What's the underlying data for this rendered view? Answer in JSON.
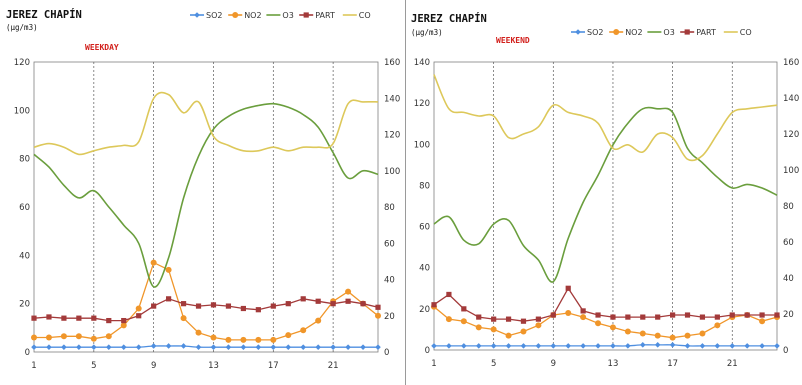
{
  "chart_data": [
    {
      "type": "line",
      "title": "JEREZ CHAPÍN",
      "subtitle": "(µg/m3)",
      "day_type": "WEEKDAY",
      "legend_position": "top-right",
      "grid": "vertical-dashed",
      "x": [
        1,
        2,
        3,
        4,
        5,
        6,
        7,
        8,
        9,
        10,
        11,
        12,
        13,
        14,
        15,
        16,
        17,
        18,
        19,
        20,
        21,
        22,
        23,
        24
      ],
      "x_ticks": [
        1,
        5,
        9,
        13,
        17,
        21
      ],
      "y_left": {
        "ticks": [
          0,
          20,
          40,
          60,
          80,
          100,
          120
        ],
        "lim": [
          0,
          120
        ]
      },
      "y_right": {
        "ticks": [
          0,
          20,
          40,
          60,
          80,
          100,
          120,
          140,
          160
        ],
        "lim": [
          0,
          160
        ]
      },
      "series": [
        {
          "name": "SO2",
          "axis": "left",
          "color": "#4f8fe0",
          "marker": "diamond",
          "smooth": true,
          "values": [
            2,
            2,
            2,
            2,
            2,
            2,
            2,
            2,
            2.5,
            2.5,
            2.5,
            2,
            2,
            2,
            2,
            2,
            2,
            2,
            2,
            2,
            2,
            2,
            2,
            2
          ]
        },
        {
          "name": "NO2",
          "axis": "left",
          "color": "#f0962a",
          "marker": "circle",
          "smooth": false,
          "values": [
            6,
            6,
            6.5,
            6.5,
            5.5,
            6.5,
            11,
            18,
            37,
            34,
            14,
            8,
            6,
            5,
            5,
            5,
            5,
            7,
            9,
            13,
            21,
            25,
            20,
            15
          ]
        },
        {
          "name": "O3",
          "axis": "right",
          "color": "#6a9e3d",
          "marker": "none",
          "smooth": true,
          "values": [
            109,
            102,
            92,
            85,
            89,
            80,
            70,
            60,
            36,
            52,
            85,
            108,
            123,
            130,
            134,
            136,
            137,
            135,
            131,
            124,
            110,
            96,
            100,
            98
          ]
        },
        {
          "name": "PART",
          "axis": "left",
          "color": "#a33a3a",
          "marker": "square",
          "smooth": false,
          "values": [
            14,
            14.5,
            14,
            14,
            14,
            13,
            13,
            15,
            19,
            22,
            20,
            19,
            19.5,
            19,
            18,
            17.5,
            19,
            20,
            22,
            21,
            20,
            21,
            20,
            18.5
          ]
        },
        {
          "name": "CO",
          "axis": "right",
          "color": "#ddc85a",
          "marker": "none",
          "smooth": true,
          "values": [
            113,
            115,
            113,
            109,
            111,
            113,
            114,
            116,
            140,
            142,
            132,
            138,
            119,
            114,
            111,
            111,
            113,
            111,
            113,
            113,
            115,
            137,
            138,
            138
          ]
        }
      ]
    },
    {
      "type": "line",
      "title": "JEREZ CHAPÍN",
      "subtitle": "(µg/m3)",
      "day_type": "WEEKEND",
      "legend_position": "top-right",
      "grid": "vertical-dashed",
      "x": [
        1,
        2,
        3,
        4,
        5,
        6,
        7,
        8,
        9,
        10,
        11,
        12,
        13,
        14,
        15,
        16,
        17,
        18,
        19,
        20,
        21,
        22,
        23,
        24
      ],
      "x_ticks": [
        1,
        5,
        9,
        13,
        17,
        21
      ],
      "y_left": {
        "ticks": [
          0,
          20,
          40,
          60,
          80,
          100,
          120,
          140
        ],
        "lim": [
          0,
          140
        ]
      },
      "y_right": {
        "ticks": [
          0,
          20,
          40,
          60,
          80,
          100,
          120,
          140,
          160
        ],
        "lim": [
          0,
          160
        ]
      },
      "series": [
        {
          "name": "SO2",
          "axis": "left",
          "color": "#4f8fe0",
          "marker": "diamond",
          "smooth": true,
          "values": [
            2,
            2,
            2,
            2,
            2,
            2,
            2,
            2,
            2,
            2,
            2,
            2,
            2,
            2,
            2.5,
            2.5,
            2.5,
            2,
            2,
            2,
            2,
            2,
            2,
            2
          ]
        },
        {
          "name": "NO2",
          "axis": "left",
          "color": "#f0962a",
          "marker": "circle",
          "smooth": false,
          "values": [
            21,
            15,
            14,
            11,
            10,
            7,
            9,
            12,
            17,
            18,
            16,
            13,
            11,
            9,
            8,
            7,
            6,
            7,
            8,
            12,
            16,
            17,
            14,
            16
          ]
        },
        {
          "name": "O3",
          "axis": "right",
          "color": "#6a9e3d",
          "marker": "none",
          "smooth": true,
          "values": [
            70,
            74,
            61,
            59,
            70,
            72,
            58,
            50,
            38,
            62,
            82,
            97,
            114,
            126,
            134,
            134,
            132,
            112,
            104,
            96,
            90,
            92,
            90,
            86
          ]
        },
        {
          "name": "PART",
          "axis": "left",
          "color": "#a33a3a",
          "marker": "square",
          "smooth": false,
          "values": [
            22,
            27,
            20,
            16,
            15,
            15,
            14,
            15,
            17,
            30,
            19,
            17,
            16,
            16,
            16,
            16,
            17,
            17,
            16,
            16,
            17,
            17,
            17,
            17
          ]
        },
        {
          "name": "CO",
          "axis": "right",
          "color": "#ddc85a",
          "marker": "none",
          "smooth": true,
          "values": [
            153,
            134,
            132,
            130,
            130,
            118,
            120,
            124,
            136,
            132,
            130,
            126,
            112,
            114,
            110,
            120,
            118,
            106,
            108,
            120,
            132,
            134,
            135,
            136
          ]
        }
      ]
    }
  ]
}
